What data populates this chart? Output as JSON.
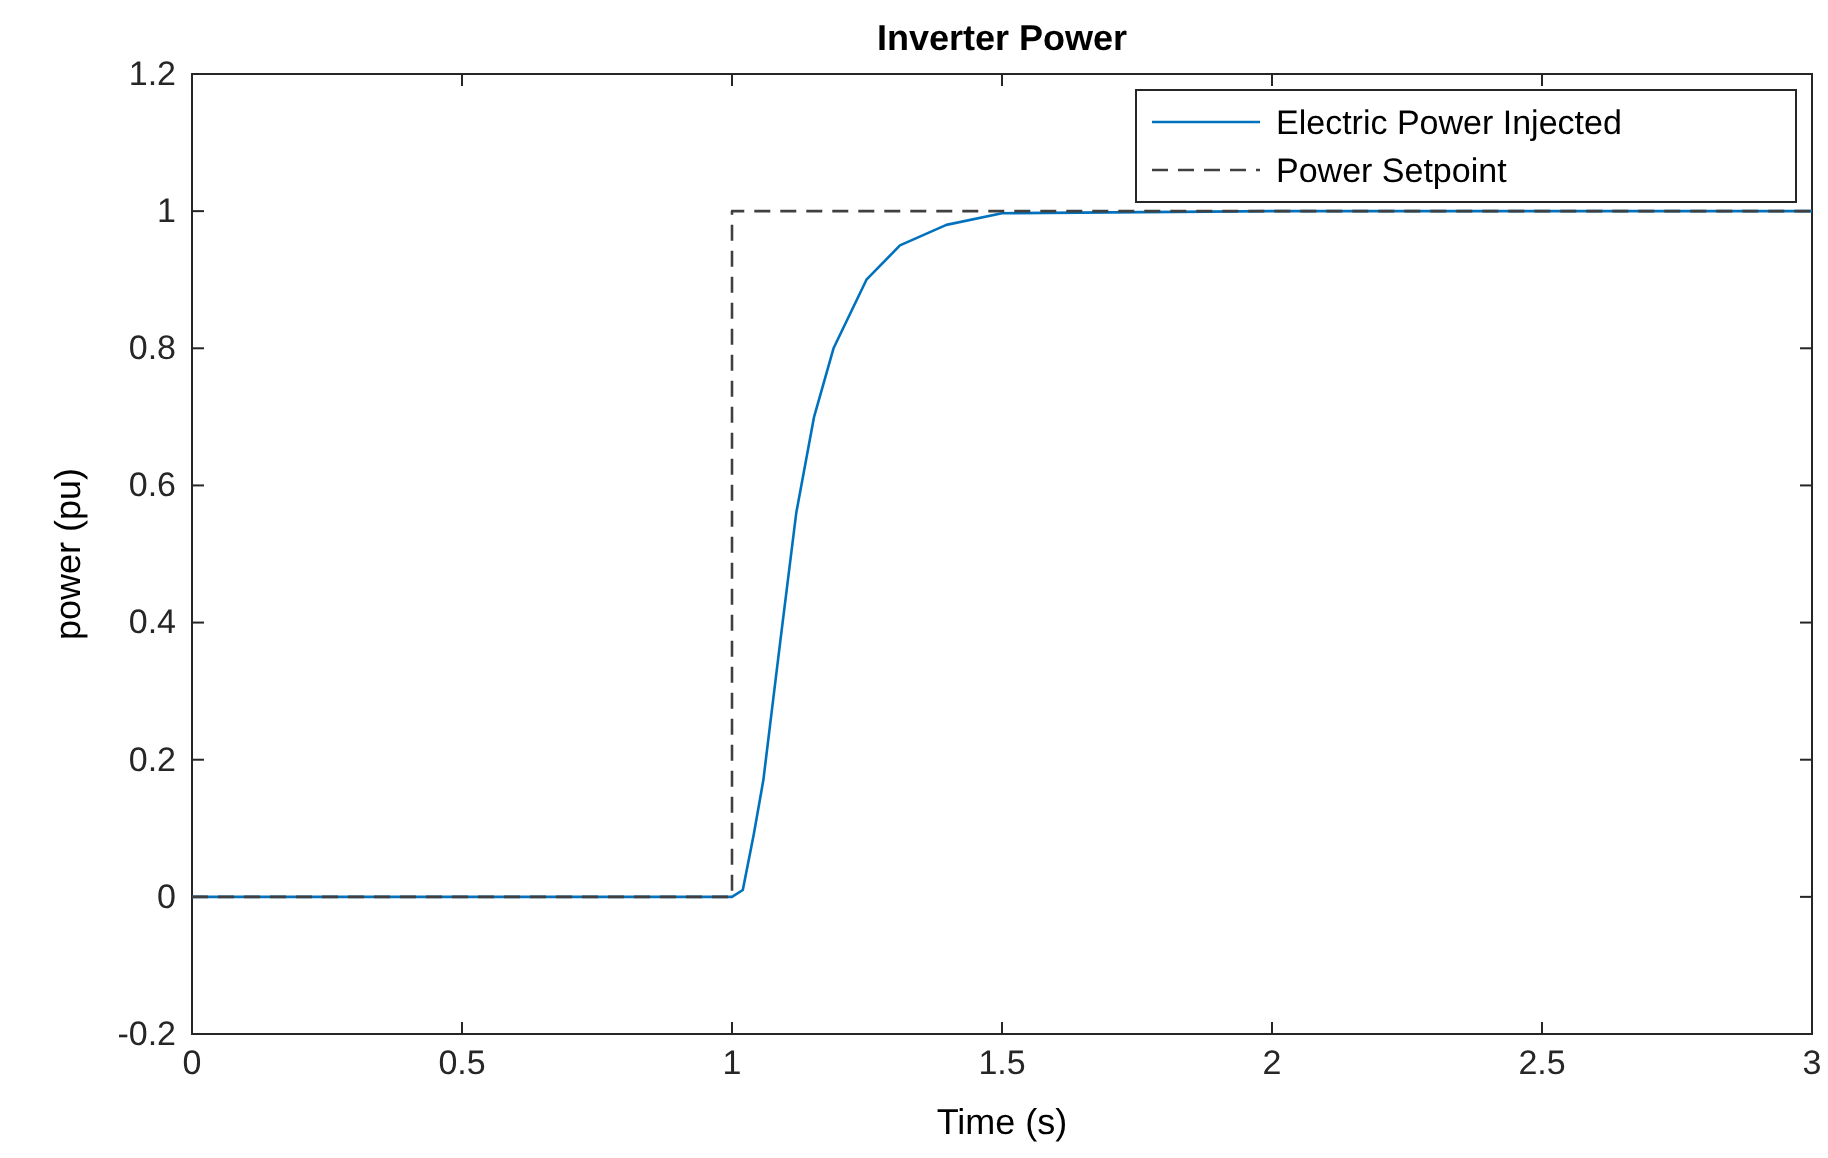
{
  "chart_data": {
    "type": "line",
    "title": "Inverter Power",
    "xlabel": "Time  (s)",
    "ylabel": "power (pu)",
    "xlim": [
      0,
      3
    ],
    "xticks": [
      0,
      0.5,
      1,
      1.5,
      2,
      2.5,
      3
    ],
    "ylim": [
      -0.2,
      1.2
    ],
    "yticks": [
      -0.2,
      0,
      0.2,
      0.4,
      0.6,
      0.8,
      1,
      1.2
    ],
    "legend": "top right",
    "grid": false,
    "series": [
      {
        "name": "Electric Power Injected",
        "color": "#0072bd",
        "line_style": "solid",
        "x": [
          0,
          1,
          1.02,
          1.04,
          1.058,
          1.089,
          1.119,
          1.152,
          1.188,
          1.249,
          1.311,
          1.397,
          1.5,
          2,
          3
        ],
        "values": [
          0,
          0,
          0.01,
          0.09,
          0.17,
          0.37,
          0.56,
          0.7,
          0.8,
          0.9,
          0.95,
          0.98,
          0.997,
          1,
          1
        ]
      },
      {
        "name": "Power Setpoint",
        "color": "#404040",
        "line_style": "dashed",
        "x": [
          0,
          1,
          1,
          3
        ],
        "values": [
          0,
          0,
          1,
          1
        ]
      }
    ]
  }
}
